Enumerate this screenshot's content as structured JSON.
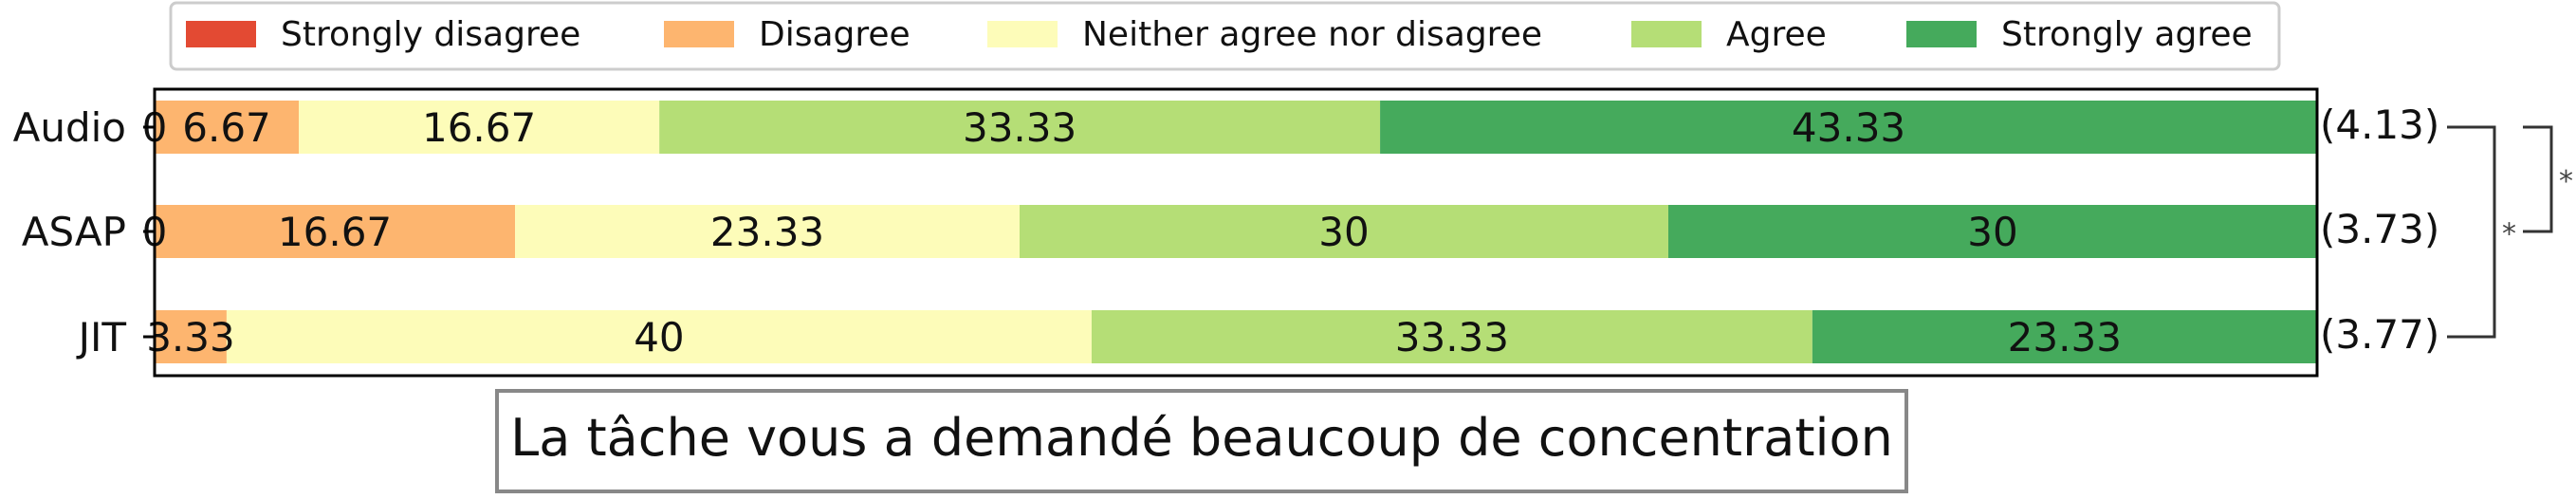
{
  "chart_data": {
    "type": "bar",
    "orientation": "horizontal-stacked",
    "title": "La tâche vous a demandé beaucoup de concentration",
    "categories": [
      "Audio",
      "ASAP",
      "JIT"
    ],
    "series": [
      {
        "name": "Strongly disagree",
        "color": "#e34a33",
        "values": [
          0,
          0,
          0
        ],
        "labels": [
          "0",
          "0",
          ""
        ]
      },
      {
        "name": "Disagree",
        "color": "#fdb56f",
        "values": [
          6.67,
          16.67,
          3.33
        ],
        "labels": [
          "6.67",
          "16.67",
          "3.33"
        ]
      },
      {
        "name": "Neither agree nor disagree",
        "color": "#fdfcb9",
        "values": [
          16.67,
          23.33,
          40
        ],
        "labels": [
          "16.67",
          "23.33",
          "40"
        ]
      },
      {
        "name": "Agree",
        "color": "#b5de76",
        "values": [
          33.33,
          30,
          33.33
        ],
        "labels": [
          "33.33",
          "30",
          "33.33"
        ]
      },
      {
        "name": "Strongly agree",
        "color": "#45aa5c",
        "values": [
          43.33,
          30,
          23.33
        ],
        "labels": [
          "43.33",
          "30",
          "23.33"
        ]
      }
    ],
    "means": [
      "(4.13)",
      "(3.73)",
      "(3.77)"
    ],
    "significance": [
      {
        "from": "Audio",
        "to": "ASAP",
        "label": "*"
      },
      {
        "from": "Audio",
        "to": "JIT",
        "label": "*"
      }
    ],
    "xlim": [
      0,
      100
    ],
    "legend_position": "top",
    "grid": false
  }
}
